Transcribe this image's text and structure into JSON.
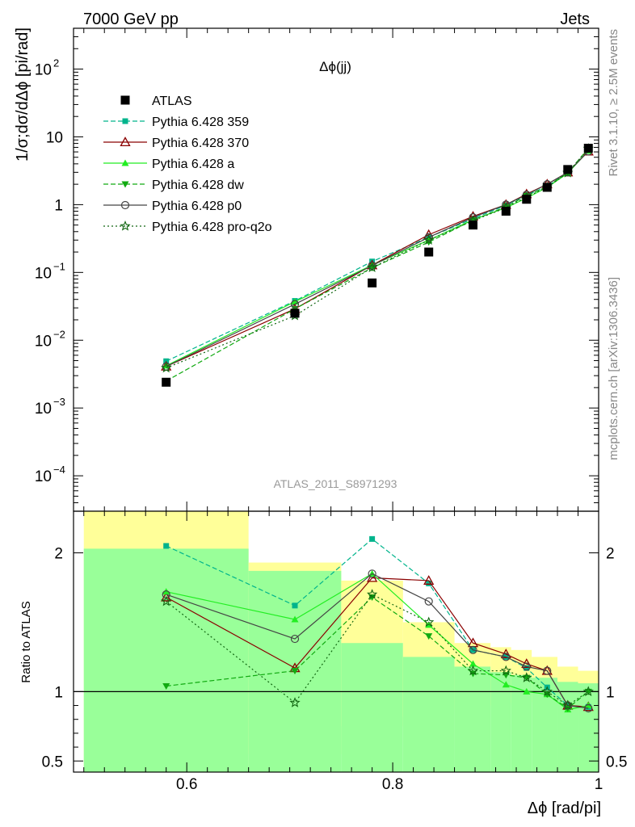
{
  "header": {
    "energy_label": "7000 GeV pp",
    "process_label": "Jets"
  },
  "side_labels": {
    "rivet": "Rivet 3.1.10, ≥ 2.5M events",
    "mcplots": "mcplots.cern.ch [arXiv:1306.3436]"
  },
  "analysis_label": "ATLAS_2011_S8971293",
  "chart_data": [
    {
      "type": "line",
      "panel": "main",
      "title": "Δϕ(jj)",
      "ylabel": "1/σ;dσ/dΔϕ [pi/rad]",
      "xlim": [
        0.49,
        1.0
      ],
      "ylim": [
        3e-05,
        400
      ],
      "yscale": "log",
      "y_ticks": [
        {
          "value": 100,
          "base": "10",
          "exp": "2"
        },
        {
          "value": 10,
          "base": "10",
          "exp": ""
        },
        {
          "value": 1,
          "base": "1",
          "exp": ""
        },
        {
          "value": 0.1,
          "base": "10",
          "exp": "−1"
        },
        {
          "value": 0.01,
          "base": "10",
          "exp": "−2"
        },
        {
          "value": 0.001,
          "base": "10",
          "exp": "−3"
        },
        {
          "value": 0.0001,
          "base": "10",
          "exp": "−4"
        }
      ],
      "legend_position": "top-left",
      "x": [
        0.58,
        0.705,
        0.78,
        0.835,
        0.878,
        0.91,
        0.93,
        0.95,
        0.97,
        0.99
      ],
      "data": {
        "name": "ATLAS",
        "values": [
          0.0024,
          0.025,
          0.07,
          0.2,
          0.5,
          0.8,
          1.2,
          1.8,
          3.3,
          6.8
        ]
      },
      "series": [
        {
          "name": "Pythia 6.428 359",
          "color": "#00b48c",
          "dash": "6,3",
          "marker": "square-small",
          "values": [
            0.0049,
            0.038,
            0.145,
            0.33,
            0.62,
            0.98,
            1.38,
            1.85,
            3.0,
            6.2
          ]
        },
        {
          "name": "Pythia 6.428 370",
          "color": "#8b0000",
          "dash": "",
          "marker": "triangle-open",
          "values": [
            0.0041,
            0.029,
            0.128,
            0.36,
            0.67,
            1.0,
            1.43,
            2.0,
            3.0,
            6.1
          ]
        },
        {
          "name": "Pythia 6.428 a",
          "color": "#22ee22",
          "dash": "",
          "marker": "triangle-filled",
          "values": [
            0.0042,
            0.037,
            0.128,
            0.3,
            0.6,
            0.9,
            1.25,
            1.8,
            2.9,
            6.2
          ]
        },
        {
          "name": "Pythia 6.428 dw",
          "color": "#11aa11",
          "dash": "6,3",
          "marker": "triangle-down-filled",
          "values": [
            0.0025,
            0.029,
            0.117,
            0.28,
            0.59,
            0.93,
            1.35,
            1.85,
            2.95,
            6.8
          ]
        },
        {
          "name": "Pythia 6.428 p0",
          "color": "#444444",
          "dash": "",
          "marker": "circle-open",
          "values": [
            0.0041,
            0.034,
            0.126,
            0.33,
            0.65,
            1.0,
            1.4,
            2.0,
            3.0,
            6.1
          ]
        },
        {
          "name": "Pythia 6.428 pro-q2o",
          "color": "#116611",
          "dash": "2,3",
          "marker": "star-open",
          "values": [
            0.0039,
            0.023,
            0.118,
            0.3,
            0.58,
            0.9,
            1.3,
            1.8,
            2.95,
            6.7
          ]
        }
      ]
    },
    {
      "type": "line",
      "panel": "ratio",
      "ylabel": "Ratio to ATLAS",
      "xlabel": "Δϕ [rad/pi]",
      "xlim": [
        0.49,
        1.0
      ],
      "ylim": [
        0.42,
        2.3
      ],
      "y_ticks": [
        0.5,
        1,
        2
      ],
      "x_ticks": [
        0.6,
        0.8,
        1
      ],
      "reference_line": 1,
      "bands": [
        {
          "x0": 0.5,
          "x1": 0.66,
          "yellow": [
            0.42,
            2.3
          ],
          "green": [
            0.42,
            2.03
          ]
        },
        {
          "x0": 0.66,
          "x1": 0.75,
          "yellow": [
            0.55,
            1.93
          ],
          "green": [
            0.42,
            1.87
          ]
        },
        {
          "x0": 0.75,
          "x1": 0.81,
          "yellow": [
            0.75,
            1.8
          ],
          "green": [
            0.42,
            1.35
          ]
        },
        {
          "x0": 0.81,
          "x1": 0.86,
          "yellow": [
            0.82,
            1.5
          ],
          "green": [
            0.42,
            1.25
          ]
        },
        {
          "x0": 0.86,
          "x1": 0.895,
          "yellow": [
            0.87,
            1.35
          ],
          "green": [
            0.42,
            1.18
          ]
        },
        {
          "x0": 0.895,
          "x1": 0.915,
          "yellow": [
            0.9,
            1.32
          ],
          "green": [
            0.42,
            1.14
          ]
        },
        {
          "x0": 0.915,
          "x1": 0.935,
          "yellow": [
            0.92,
            1.3
          ],
          "green": [
            0.42,
            1.12
          ]
        },
        {
          "x0": 0.935,
          "x1": 0.96,
          "yellow": [
            0.93,
            1.25
          ],
          "green": [
            0.42,
            1.1
          ]
        },
        {
          "x0": 0.96,
          "x1": 0.98,
          "yellow": [
            0.94,
            1.18
          ],
          "green": [
            0.42,
            1.07
          ]
        },
        {
          "x0": 0.98,
          "x1": 1.0,
          "yellow": [
            0.95,
            1.15
          ],
          "green": [
            0.42,
            1.06
          ]
        }
      ],
      "x": [
        0.58,
        0.705,
        0.78,
        0.835,
        0.878,
        0.91,
        0.93,
        0.95,
        0.97,
        0.99
      ],
      "series": [
        {
          "name": "Pythia 6.428 359",
          "values": [
            2.05,
            1.62,
            2.1,
            1.78,
            1.3,
            1.25,
            1.17,
            1.03,
            0.9,
            0.89
          ]
        },
        {
          "name": "Pythia 6.428 370",
          "values": [
            1.68,
            1.17,
            1.82,
            1.8,
            1.35,
            1.27,
            1.2,
            1.15,
            0.9,
            0.89
          ]
        },
        {
          "name": "Pythia 6.428 a",
          "values": [
            1.72,
            1.52,
            1.85,
            1.48,
            1.2,
            1.05,
            1.0,
            0.98,
            0.87,
            0.9
          ]
        },
        {
          "name": "Pythia 6.428 dw",
          "values": [
            1.04,
            1.15,
            1.68,
            1.4,
            1.13,
            1.12,
            1.1,
            0.98,
            0.88,
            1.0
          ]
        },
        {
          "name": "Pythia 6.428 p0",
          "values": [
            1.7,
            1.38,
            1.85,
            1.65,
            1.3,
            1.25,
            1.18,
            1.15,
            0.9,
            0.88
          ]
        },
        {
          "name": "Pythia 6.428 pro-q2o",
          "values": [
            1.65,
            0.92,
            1.7,
            1.5,
            1.15,
            1.15,
            1.1,
            1.0,
            0.9,
            1.0
          ]
        }
      ]
    }
  ]
}
